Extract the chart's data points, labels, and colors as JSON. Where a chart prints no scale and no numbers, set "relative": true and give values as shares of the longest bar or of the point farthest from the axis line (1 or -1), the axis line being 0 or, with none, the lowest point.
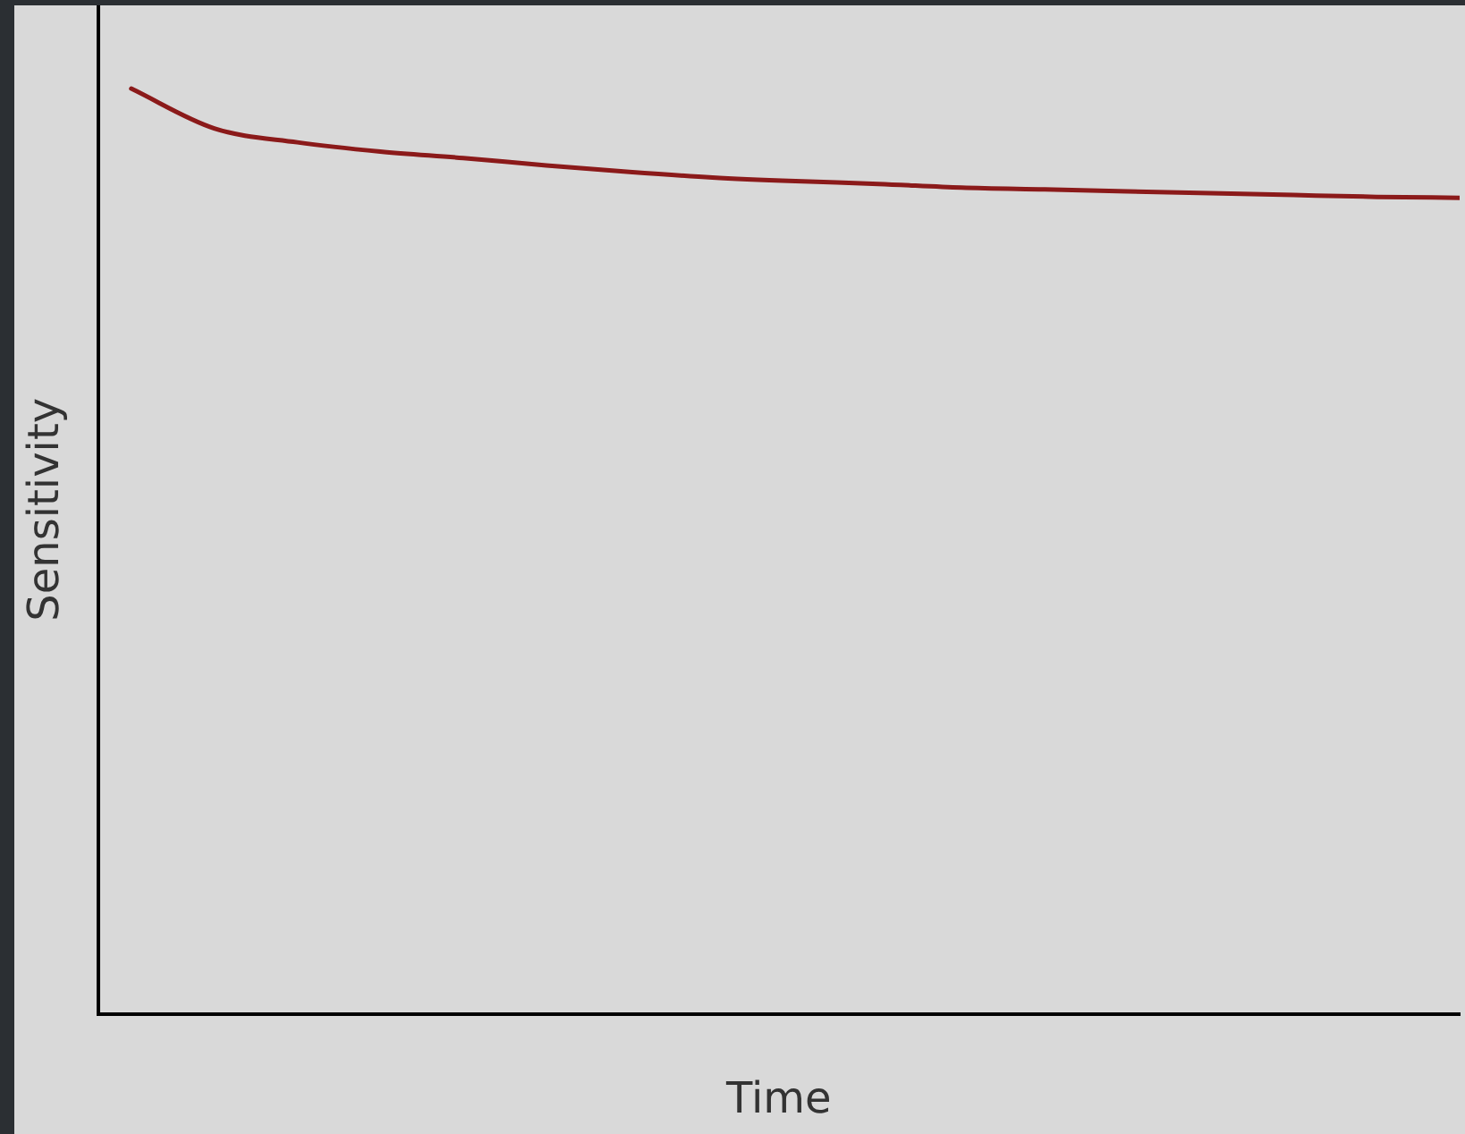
{
  "chart_data": {
    "type": "line",
    "relative": true,
    "xlabel": "Time",
    "ylabel": "Sensitivity",
    "categories": [
      null,
      null,
      null,
      null,
      null,
      null,
      null,
      null,
      null,
      null,
      null,
      null,
      null,
      null,
      null,
      null,
      null
    ],
    "series": [
      {
        "color": "#8b1a1a",
        "values": [
          1.0,
          0.957,
          0.942,
          0.932,
          0.925,
          0.917,
          0.91,
          0.904,
          0.9,
          0.897,
          0.893,
          0.891,
          0.889,
          0.887,
          0.885,
          0.883,
          0.882
        ]
      }
    ],
    "grid": false,
    "legend": false,
    "marker": "none",
    "line_style": "solid"
  }
}
